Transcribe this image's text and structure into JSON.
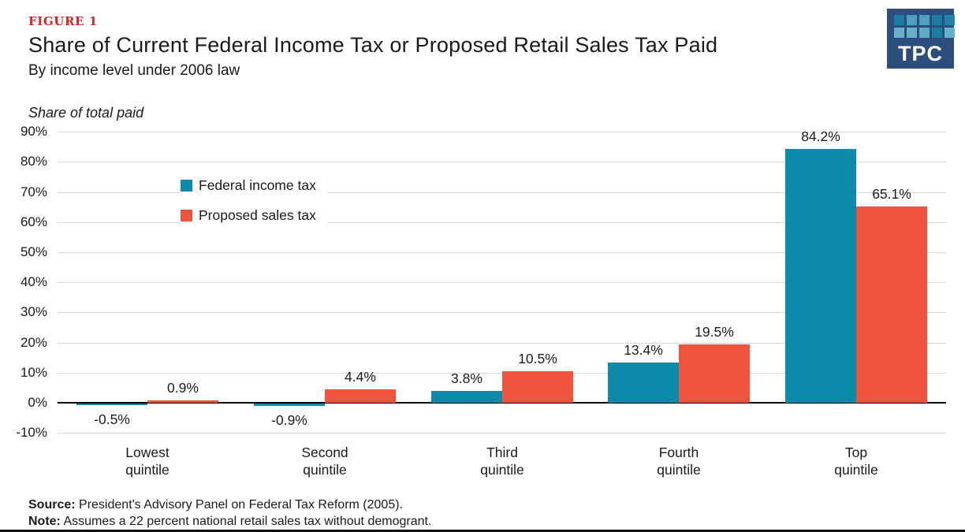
{
  "header": {
    "figure_label": "FIGURE 1",
    "title": "Share of Current Federal Income Tax or Proposed Retail Sales Tax Paid",
    "subtitle": "By income level under 2006 law"
  },
  "logo": {
    "text": "TPC",
    "bg_color": "#2b4e7c",
    "square_colors": [
      [
        "#1c7ca2",
        "#4f9fbe",
        "#4f9fbe",
        "#1c7ca2",
        "#2383a8"
      ],
      [
        "#66b1c8",
        "#66b1c8",
        "#5fabc4",
        "#1c7ca2",
        "#66b1c8"
      ]
    ]
  },
  "chart_data": {
    "type": "bar",
    "title": "Share of Current Federal Income Tax or Proposed Retail Sales Tax Paid",
    "subtitle": "By income level under 2006 law",
    "axis_title": "Share of total paid",
    "categories": [
      "Lowest quintile",
      "Second quintile",
      "Third quintile",
      "Fourth quintile",
      "Top quintile"
    ],
    "series": [
      {
        "name": "Federal income tax",
        "color": "#0d8aa9",
        "values": [
          -0.5,
          -0.9,
          3.8,
          13.4,
          84.2
        ],
        "labels": [
          "-0.5%",
          "-0.9%",
          "3.8%",
          "13.4%",
          "84.2%"
        ]
      },
      {
        "name": "Proposed sales tax",
        "color": "#f0543e",
        "values": [
          0.9,
          4.4,
          10.5,
          19.5,
          65.1
        ],
        "labels": [
          "0.9%",
          "4.4%",
          "10.5%",
          "19.5%",
          "65.1%"
        ]
      }
    ],
    "ylim": [
      -10,
      90
    ],
    "ytick_step": 10,
    "ytick_labels": [
      "90%",
      "80%",
      "70%",
      "60%",
      "50%",
      "40%",
      "30%",
      "20%",
      "10%",
      "0%",
      "-10%"
    ],
    "grid": true,
    "legend_position": "upper-left-inside"
  },
  "footer": {
    "source_label": "Source:",
    "source_text": " President's Advisory Panel on Federal Tax Reform (2005).",
    "note_label": "Note:",
    "note_text": " Assumes a 22 percent national retail sales tax without demogrant."
  }
}
